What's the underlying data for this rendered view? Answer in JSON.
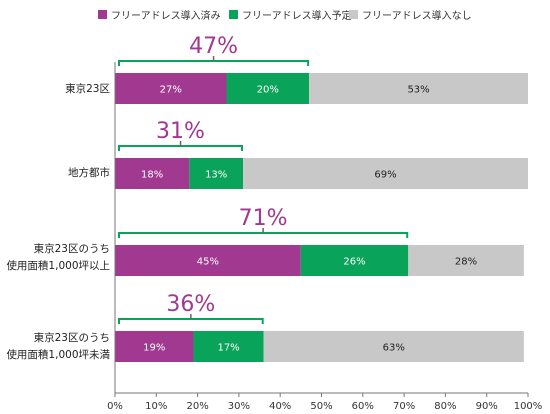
{
  "chart_data": {
    "type": "bar",
    "orientation": "horizontal",
    "stacked": true,
    "categories": [
      [
        "東京23区"
      ],
      [
        "地方都市"
      ],
      [
        "東京23区のうち",
        "使用面積1,000坪以上"
      ],
      [
        "東京23区のうち",
        "使用面積1,000坪未満"
      ]
    ],
    "series": [
      {
        "name": "フリーアドレス導入済み",
        "color": "#a0398f",
        "values": [
          27,
          18,
          45,
          19
        ],
        "labels": [
          "27%",
          "18%",
          "45%",
          "19%"
        ]
      },
      {
        "name": "フリーアドレス導入予定",
        "color": "#0aa35a",
        "values": [
          20,
          13,
          26,
          17
        ],
        "labels": [
          "20%",
          "13%",
          "26%",
          "17%"
        ]
      },
      {
        "name": "フリーアドレス導入なし",
        "color": "#c8c8c8",
        "values": [
          53,
          69,
          28,
          63
        ],
        "labels": [
          "53%",
          "69%",
          "28%",
          "63%"
        ]
      }
    ],
    "totals": {
      "values": [
        47,
        31,
        71,
        36
      ],
      "labels": [
        "47%",
        "31%",
        "71%",
        "36%"
      ],
      "color": "#a0398f",
      "bracket_color": "#0aa35a"
    },
    "xlim": [
      0,
      100
    ],
    "xticks": [
      "0%",
      "10%",
      "20%",
      "30%",
      "40%",
      "50%",
      "60%",
      "70%",
      "80%",
      "90%",
      "100%"
    ],
    "legend_position": "top",
    "grid": false
  }
}
